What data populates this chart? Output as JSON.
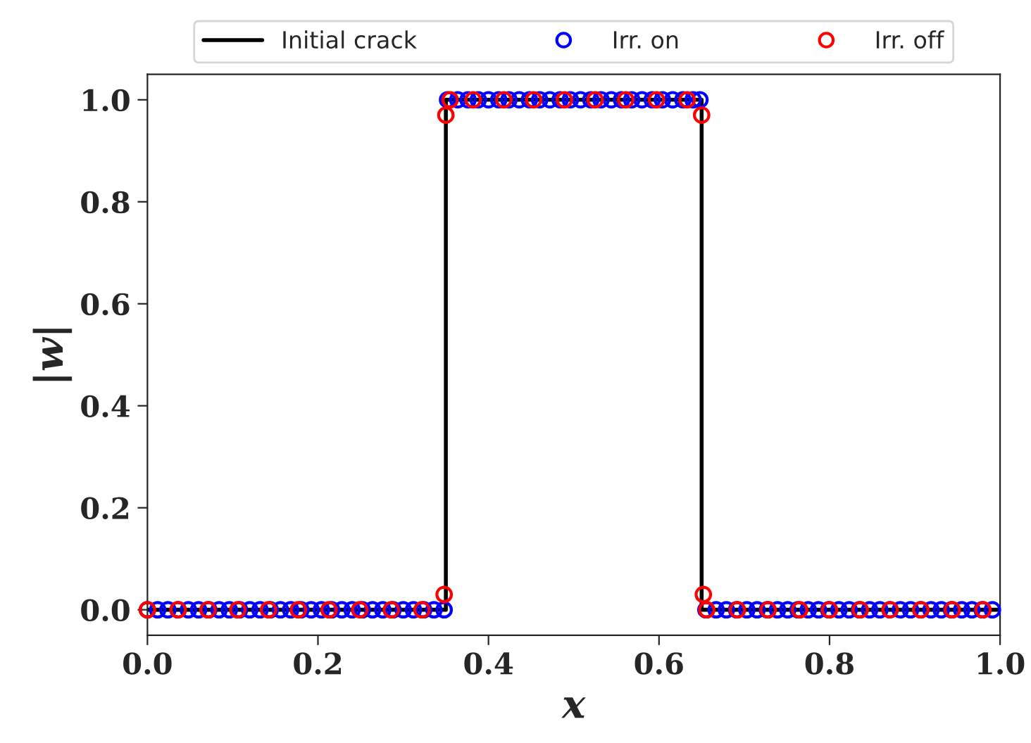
{
  "chart_data": {
    "type": "scatter",
    "xlabel": "x",
    "ylabel": "|w|",
    "xlim": [
      0,
      1
    ],
    "ylim": [
      -0.05,
      1.05
    ],
    "xticks": [
      {
        "value": 0,
        "label": "0.0"
      },
      {
        "value": 0.2,
        "label": "0.2"
      },
      {
        "value": 0.4,
        "label": "0.4"
      },
      {
        "value": 0.6,
        "label": "0.6"
      },
      {
        "value": 0.8,
        "label": "0.8"
      },
      {
        "value": 1,
        "label": "1.0"
      }
    ],
    "yticks": [
      {
        "value": 0,
        "label": "0.0"
      },
      {
        "value": 0.2,
        "label": "0.2"
      },
      {
        "value": 0.4,
        "label": "0.4"
      },
      {
        "value": 0.6,
        "label": "0.6"
      },
      {
        "value": 0.8,
        "label": "0.8"
      },
      {
        "value": 1,
        "label": "1.0"
      }
    ],
    "grid": false,
    "legend": "top",
    "series": [
      {
        "name": "Initial crack",
        "type": "line",
        "color": "#000000",
        "line_style": "solid",
        "marker": "none",
        "x": [
          0,
          0.35,
          0.35,
          0.65,
          0.65,
          1
        ],
        "values": [
          0,
          0,
          1,
          1,
          0,
          0
        ]
      },
      {
        "name": "Irr. on",
        "color": "#0000ff",
        "marker": "circle",
        "x": [
          0,
          0.012,
          0.024,
          0.036,
          0.048,
          0.06,
          0.072,
          0.084,
          0.096,
          0.108,
          0.12,
          0.132,
          0.144,
          0.156,
          0.168,
          0.18,
          0.192,
          0.204,
          0.216,
          0.228,
          0.24,
          0.252,
          0.264,
          0.276,
          0.288,
          0.3,
          0.312,
          0.324,
          0.336,
          0.348,
          0.352,
          0.364,
          0.376,
          0.388,
          0.4,
          0.412,
          0.424,
          0.436,
          0.448,
          0.46,
          0.472,
          0.484,
          0.496,
          0.508,
          0.52,
          0.532,
          0.544,
          0.556,
          0.568,
          0.58,
          0.592,
          0.604,
          0.616,
          0.628,
          0.64,
          0.648,
          0.655,
          0.667,
          0.679,
          0.691,
          0.703,
          0.715,
          0.727,
          0.739,
          0.751,
          0.763,
          0.775,
          0.787,
          0.799,
          0.811,
          0.823,
          0.835,
          0.847,
          0.859,
          0.871,
          0.883,
          0.895,
          0.907,
          0.919,
          0.931,
          0.943,
          0.955,
          0.967,
          0.979,
          0.991
        ],
        "values": [
          0,
          0,
          0,
          0,
          0,
          0,
          0,
          0,
          0,
          0,
          0,
          0,
          0,
          0,
          0,
          0,
          0,
          0,
          0,
          0,
          0,
          0,
          0,
          0,
          0,
          0,
          0,
          0,
          0,
          0,
          1,
          1,
          1,
          1,
          1,
          1,
          1,
          1,
          1,
          1,
          1,
          1,
          1,
          1,
          1,
          1,
          1,
          1,
          1,
          1,
          1,
          1,
          1,
          1,
          1,
          1,
          0,
          0,
          0,
          0,
          0,
          0,
          0,
          0,
          0,
          0,
          0,
          0,
          0,
          0,
          0,
          0,
          0,
          0,
          0,
          0,
          0,
          0,
          0,
          0,
          0,
          0,
          0,
          0,
          0
        ]
      },
      {
        "name": "Irr. off",
        "color": "#ff0000",
        "marker": "circle",
        "x": [
          0,
          0.036,
          0.071,
          0.106,
          0.142,
          0.177,
          0.213,
          0.249,
          0.286,
          0.322,
          0.348,
          0.35,
          0.355,
          0.382,
          0.418,
          0.453,
          0.489,
          0.525,
          0.561,
          0.597,
          0.633,
          0.65,
          0.652,
          0.656,
          0.692,
          0.728,
          0.765,
          0.8,
          0.836,
          0.871,
          0.907,
          0.944,
          0.98
        ],
        "values": [
          0,
          0,
          0,
          0,
          0,
          0,
          0,
          0,
          0,
          0,
          0.03,
          0.97,
          1,
          1,
          1,
          1,
          1,
          1,
          1,
          1,
          1,
          0.97,
          0.03,
          0,
          0,
          0,
          0,
          0,
          0,
          0,
          0,
          0,
          0
        ]
      }
    ]
  }
}
